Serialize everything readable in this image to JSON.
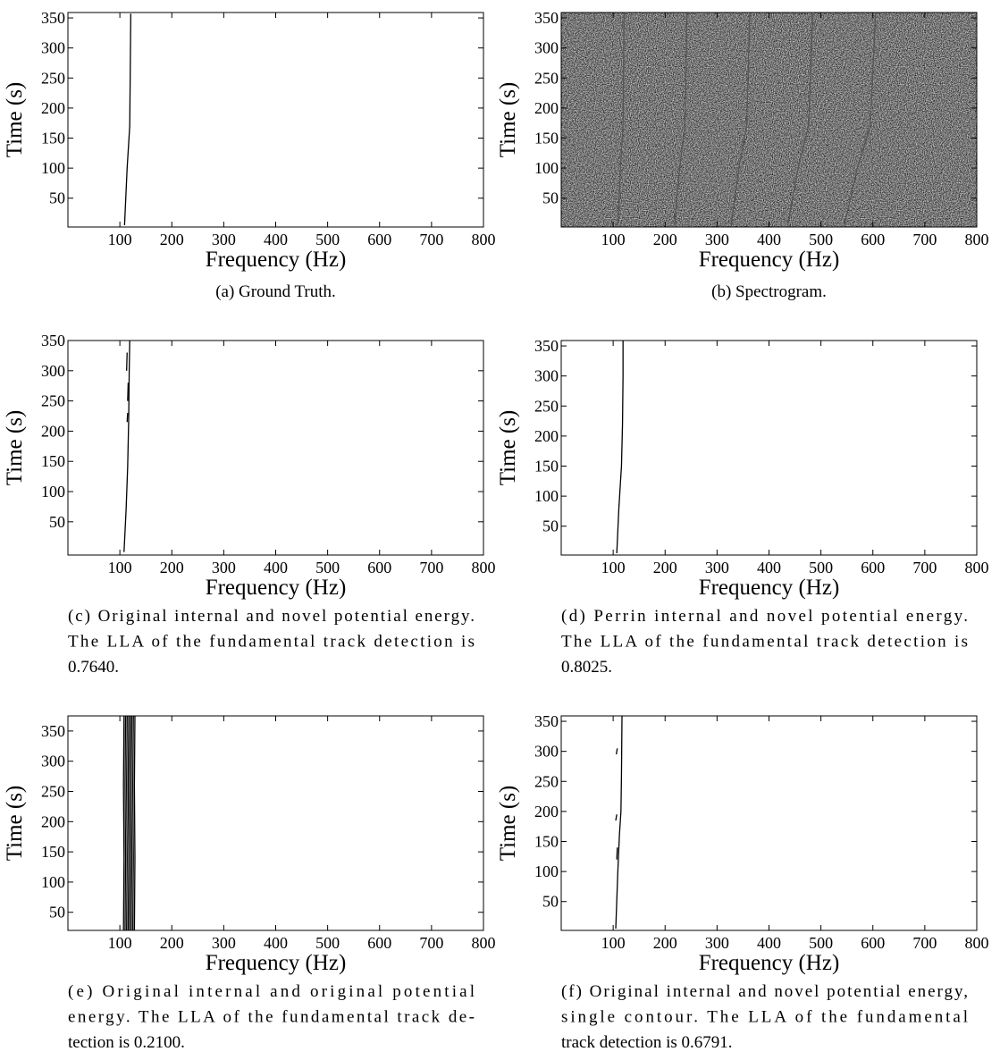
{
  "chart_data": [
    {
      "type": "line",
      "xlabel": "Frequency (Hz)",
      "ylabel": "Time (s)",
      "caption": [
        "(a) Ground Truth."
      ],
      "xlim": [
        0,
        800
      ],
      "ylim": [
        2,
        359
      ],
      "xticks": [
        100,
        200,
        300,
        400,
        500,
        600,
        700,
        800
      ],
      "yticks": [
        50,
        100,
        150,
        200,
        250,
        300,
        350
      ],
      "series": [
        {
          "color": "#000000",
          "x": [
            109,
            114,
            119,
            120,
            121
          ],
          "values": [
            5,
            100,
            170,
            260,
            357
          ]
        }
      ]
    },
    {
      "type": "line",
      "xlabel": "Frequency (Hz)",
      "ylabel": "Time (s)",
      "caption": [
        "(b) Spectrogram."
      ],
      "background": "#d8d8d8",
      "xlim": [
        0,
        800
      ],
      "ylim": [
        2,
        359
      ],
      "xticks": [
        100,
        200,
        300,
        400,
        500,
        600,
        700,
        800
      ],
      "yticks": [
        50,
        100,
        150,
        200,
        250,
        300,
        350
      ],
      "series": [
        {
          "color": "#555555",
          "x": [
            109,
            114,
            119,
            120,
            121
          ],
          "values": [
            5,
            100,
            170,
            260,
            357
          ]
        },
        {
          "color": "#555555",
          "x": [
            218,
            228,
            238,
            240,
            242
          ],
          "values": [
            5,
            100,
            170,
            260,
            357
          ]
        },
        {
          "color": "#555555",
          "x": [
            327,
            342,
            357,
            360,
            363
          ],
          "values": [
            5,
            100,
            170,
            260,
            357
          ]
        },
        {
          "color": "#555555",
          "x": [
            436,
            456,
            476,
            480,
            484
          ],
          "values": [
            5,
            100,
            170,
            260,
            357
          ]
        },
        {
          "color": "#555555",
          "x": [
            545,
            570,
            595,
            600,
            605
          ],
          "values": [
            5,
            100,
            170,
            260,
            357
          ]
        }
      ]
    },
    {
      "type": "line",
      "xlabel": "Frequency (Hz)",
      "ylabel": "Time (s)",
      "caption": [
        "(c) Original internal and novel potential energy.",
        "The LLA of the fundamental track detection is",
        "0.7640."
      ],
      "xlim": [
        0,
        800
      ],
      "ylim": [
        -5,
        350
      ],
      "xticks": [
        100,
        200,
        300,
        400,
        500,
        600,
        700,
        800
      ],
      "yticks": [
        50,
        100,
        150,
        200,
        250,
        300,
        350
      ],
      "series": [
        {
          "color": "#000000",
          "x": [
            108,
            112,
            115,
            117,
            118,
            119
          ],
          "values": [
            0,
            70,
            140,
            220,
            300,
            350
          ]
        },
        {
          "color": "#000000",
          "x": [
            113,
            114
          ],
          "values": [
            300,
            330
          ]
        },
        {
          "color": "#000000",
          "x": [
            115,
            116
          ],
          "values": [
            250,
            280
          ]
        },
        {
          "color": "#000000",
          "x": [
            114,
            115
          ],
          "values": [
            215,
            230
          ]
        }
      ]
    },
    {
      "type": "line",
      "xlabel": "Frequency (Hz)",
      "ylabel": "Time (s)",
      "caption": [
        "(d) Perrin internal and novel potential energy.",
        "The LLA of the fundamental track detection is",
        "0.8025."
      ],
      "xlim": [
        0,
        800
      ],
      "ylim": [
        2,
        359
      ],
      "xticks": [
        100,
        200,
        300,
        400,
        500,
        600,
        700,
        800
      ],
      "yticks": [
        50,
        100,
        150,
        200,
        250,
        300,
        350
      ],
      "series": [
        {
          "color": "#000000",
          "x": [
            107,
            111,
            116,
            118,
            119,
            119
          ],
          "values": [
            5,
            80,
            150,
            220,
            300,
            359
          ]
        }
      ]
    },
    {
      "type": "line",
      "xlabel": "Frequency (Hz)",
      "ylabel": "Time (s)",
      "caption": [
        "(e) Original internal and original potential",
        "energy. The LLA of the fundamental track de-",
        "tection is 0.2100."
      ],
      "xlim": [
        0,
        800
      ],
      "ylim": [
        20,
        375
      ],
      "xticks": [
        100,
        200,
        300,
        400,
        500,
        600,
        700,
        800
      ],
      "yticks": [
        50,
        100,
        150,
        200,
        250,
        300,
        350
      ],
      "series": [
        {
          "color": "#000000",
          "x": [
            107,
            108,
            107,
            108
          ],
          "values": [
            20,
            140,
            260,
            375
          ]
        },
        {
          "color": "#000000",
          "x": [
            110,
            111,
            110,
            111
          ],
          "values": [
            20,
            140,
            260,
            375
          ]
        },
        {
          "color": "#000000",
          "x": [
            113,
            114,
            113,
            114
          ],
          "values": [
            20,
            140,
            260,
            375
          ]
        },
        {
          "color": "#000000",
          "x": [
            116,
            117,
            116,
            117
          ],
          "values": [
            20,
            140,
            260,
            375
          ]
        },
        {
          "color": "#000000",
          "x": [
            119,
            120,
            119,
            120
          ],
          "values": [
            20,
            140,
            260,
            375
          ]
        },
        {
          "color": "#000000",
          "x": [
            122,
            123,
            122,
            123
          ],
          "values": [
            20,
            140,
            260,
            375
          ]
        },
        {
          "color": "#000000",
          "x": [
            125,
            126,
            125,
            126
          ],
          "values": [
            20,
            140,
            260,
            375
          ]
        },
        {
          "color": "#000000",
          "x": [
            128,
            129,
            128,
            129
          ],
          "values": [
            20,
            140,
            260,
            375
          ]
        }
      ]
    },
    {
      "type": "line",
      "xlabel": "Frequency (Hz)",
      "ylabel": "Time (s)",
      "caption": [
        "(f) Original internal and novel potential energy,",
        "single contour.  The LLA of the fundamental",
        "track detection is 0.6791."
      ],
      "xlim": [
        0,
        800
      ],
      "ylim": [
        2,
        359
      ],
      "xticks": [
        100,
        200,
        300,
        400,
        500,
        600,
        700,
        800
      ],
      "yticks": [
        50,
        100,
        150,
        200,
        250,
        300,
        350
      ],
      "series": [
        {
          "color": "#000000",
          "x": [
            105,
            109,
            112,
            115,
            116,
            117
          ],
          "values": [
            5,
            100,
            160,
            200,
            260,
            359
          ]
        },
        {
          "color": "#000000",
          "x": [
            105,
            107
          ],
          "values": [
            185,
            195
          ]
        },
        {
          "color": "#000000",
          "x": [
            106,
            108
          ],
          "values": [
            295,
            305
          ]
        },
        {
          "color": "#000000",
          "x": [
            107,
            108
          ],
          "values": [
            120,
            140
          ]
        }
      ]
    }
  ]
}
